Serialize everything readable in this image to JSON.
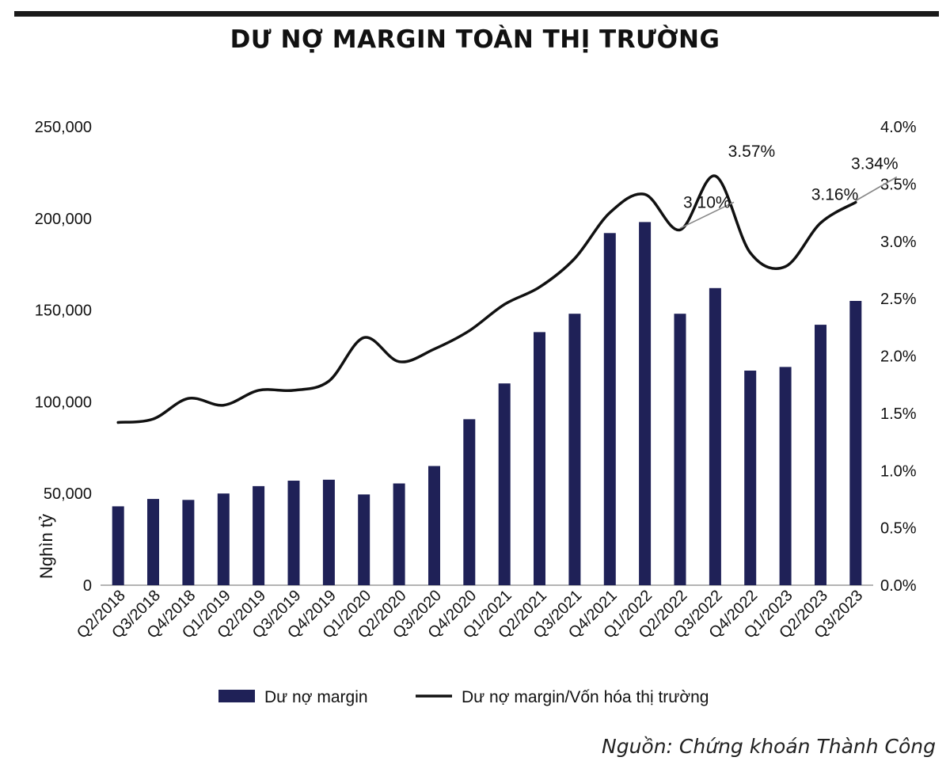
{
  "header": {
    "title": "DƯ NỢ MARGIN TOÀN THỊ TRƯỜNG"
  },
  "source": "Nguồn: Chứng khoán Thành Công",
  "colors": {
    "bar": "#1f2157",
    "line": "#111111",
    "axis": "#888888",
    "text": "#111111",
    "leader": "#888888"
  },
  "chart_data": {
    "type": "bar",
    "title": "DƯ NỢ MARGIN TOÀN THỊ TRƯỜNG",
    "categories": [
      "Q2/2018",
      "Q3/2018",
      "Q4/2018",
      "Q1/2019",
      "Q2/2019",
      "Q3/2019",
      "Q4/2019",
      "Q1/2020",
      "Q2/2020",
      "Q3/2020",
      "Q4/2020",
      "Q1/2021",
      "Q2/2021",
      "Q3/2021",
      "Q4/2021",
      "Q1/2022",
      "Q2/2022",
      "Q3/2022",
      "Q4/2022",
      "Q1/2023",
      "Q2/2023",
      "Q3/2023"
    ],
    "series": [
      {
        "name": "Dư nợ margin",
        "type": "bar",
        "axis": "left",
        "values": [
          43000,
          47000,
          46500,
          50000,
          54000,
          57000,
          57500,
          49500,
          55500,
          65000,
          90500,
          110000,
          138000,
          148000,
          192000,
          198000,
          148000,
          162000,
          117000,
          119000,
          142000,
          155000
        ]
      },
      {
        "name": "Dư nợ margin/Vốn hóa thị trường",
        "type": "line",
        "axis": "right",
        "values": [
          1.42,
          1.45,
          1.63,
          1.57,
          1.7,
          1.7,
          1.78,
          2.16,
          1.95,
          2.06,
          2.22,
          2.45,
          2.6,
          2.85,
          3.25,
          3.41,
          3.1,
          3.57,
          2.9,
          2.78,
          3.16,
          3.34
        ]
      }
    ],
    "ylabel": "Nghìn tỷ",
    "ylim": [
      0,
      250000
    ],
    "y_ticks": [
      0,
      50000,
      100000,
      150000,
      200000,
      250000
    ],
    "y_tick_labels": [
      "0",
      "50,000",
      "100,000",
      "150,000",
      "200,000",
      "250,000"
    ],
    "y2lim": [
      0,
      4.0
    ],
    "y2_ticks": [
      0,
      0.5,
      1.0,
      1.5,
      2.0,
      2.5,
      3.0,
      3.5,
      4.0
    ],
    "y2_tick_labels": [
      "0.0%",
      "0.5%",
      "1.0%",
      "1.5%",
      "2.0%",
      "2.5%",
      "3.0%",
      "3.5%",
      "4.0%"
    ],
    "annotations": [
      {
        "text": "3.10%",
        "category_index": 16
      },
      {
        "text": "3.57%",
        "category_index": 17
      },
      {
        "text": "3.16%",
        "category_index": 20
      },
      {
        "text": "3.34%",
        "category_index": 21
      }
    ],
    "legend": {
      "position": "bottom",
      "bar_label": "Dư nợ margin",
      "line_label": "Dư nợ margin/Vốn hóa thị trường"
    },
    "grid": false
  }
}
